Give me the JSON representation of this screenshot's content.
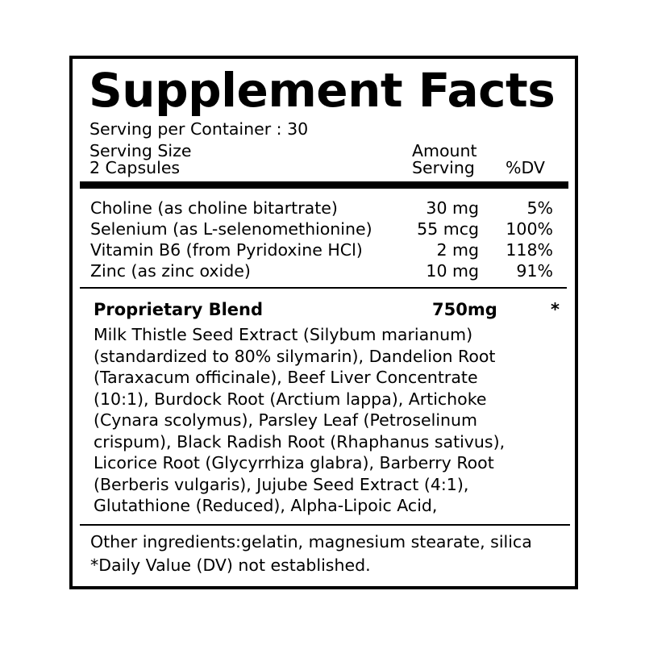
{
  "title": "Supplement Facts",
  "servings_per_container": "Serving per Container : 30",
  "serving_size_label": "Serving Size",
  "serving_size_value": "2 Capsules",
  "amount_label": "Amount",
  "serving_label": "Serving",
  "dv_label": "%DV",
  "nutrients": [
    {
      "name": "Choline (as choline bitartrate)",
      "amount": "30 mg",
      "dv": "5%"
    },
    {
      "name": "Selenium (as L-selenomethionine)",
      "amount": "55 mcg",
      "dv": "100%"
    },
    {
      "name": "Vitamin B6 (from Pyridoxine HCl)",
      "amount": "2 mg",
      "dv": "118%"
    },
    {
      "name": "Zinc (as zinc oxide)",
      "amount": "10 mg",
      "dv": "91%"
    }
  ],
  "blend": {
    "name": "Proprietary Blend",
    "amount": "750mg",
    "dv": "*",
    "lines": [
      "Milk Thistle Seed Extract (Silybum marianum)",
      "(standardized to 80% silymarin), Dandelion Root",
      "(Taraxacum officinale), Beef Liver Concentrate",
      "(10:1), Burdock Root (Arctium lappa), Artichoke",
      "(Cynara scolymus), Parsley Leaf (Petroselinum",
      "crispum), Black Radish Root (Rhaphanus sativus),",
      "Licorice Root (Glycyrrhiza glabra), Barberry Root",
      "(Berberis vulgaris), Jujube Seed Extract (4:1),",
      "Glutathione (Reduced), Alpha-Lipoic Acid,"
    ]
  },
  "other_ingredients": "Other ingredients:gelatin, magnesium stearate, silica",
  "dv_note": "*Daily Value (DV) not established."
}
